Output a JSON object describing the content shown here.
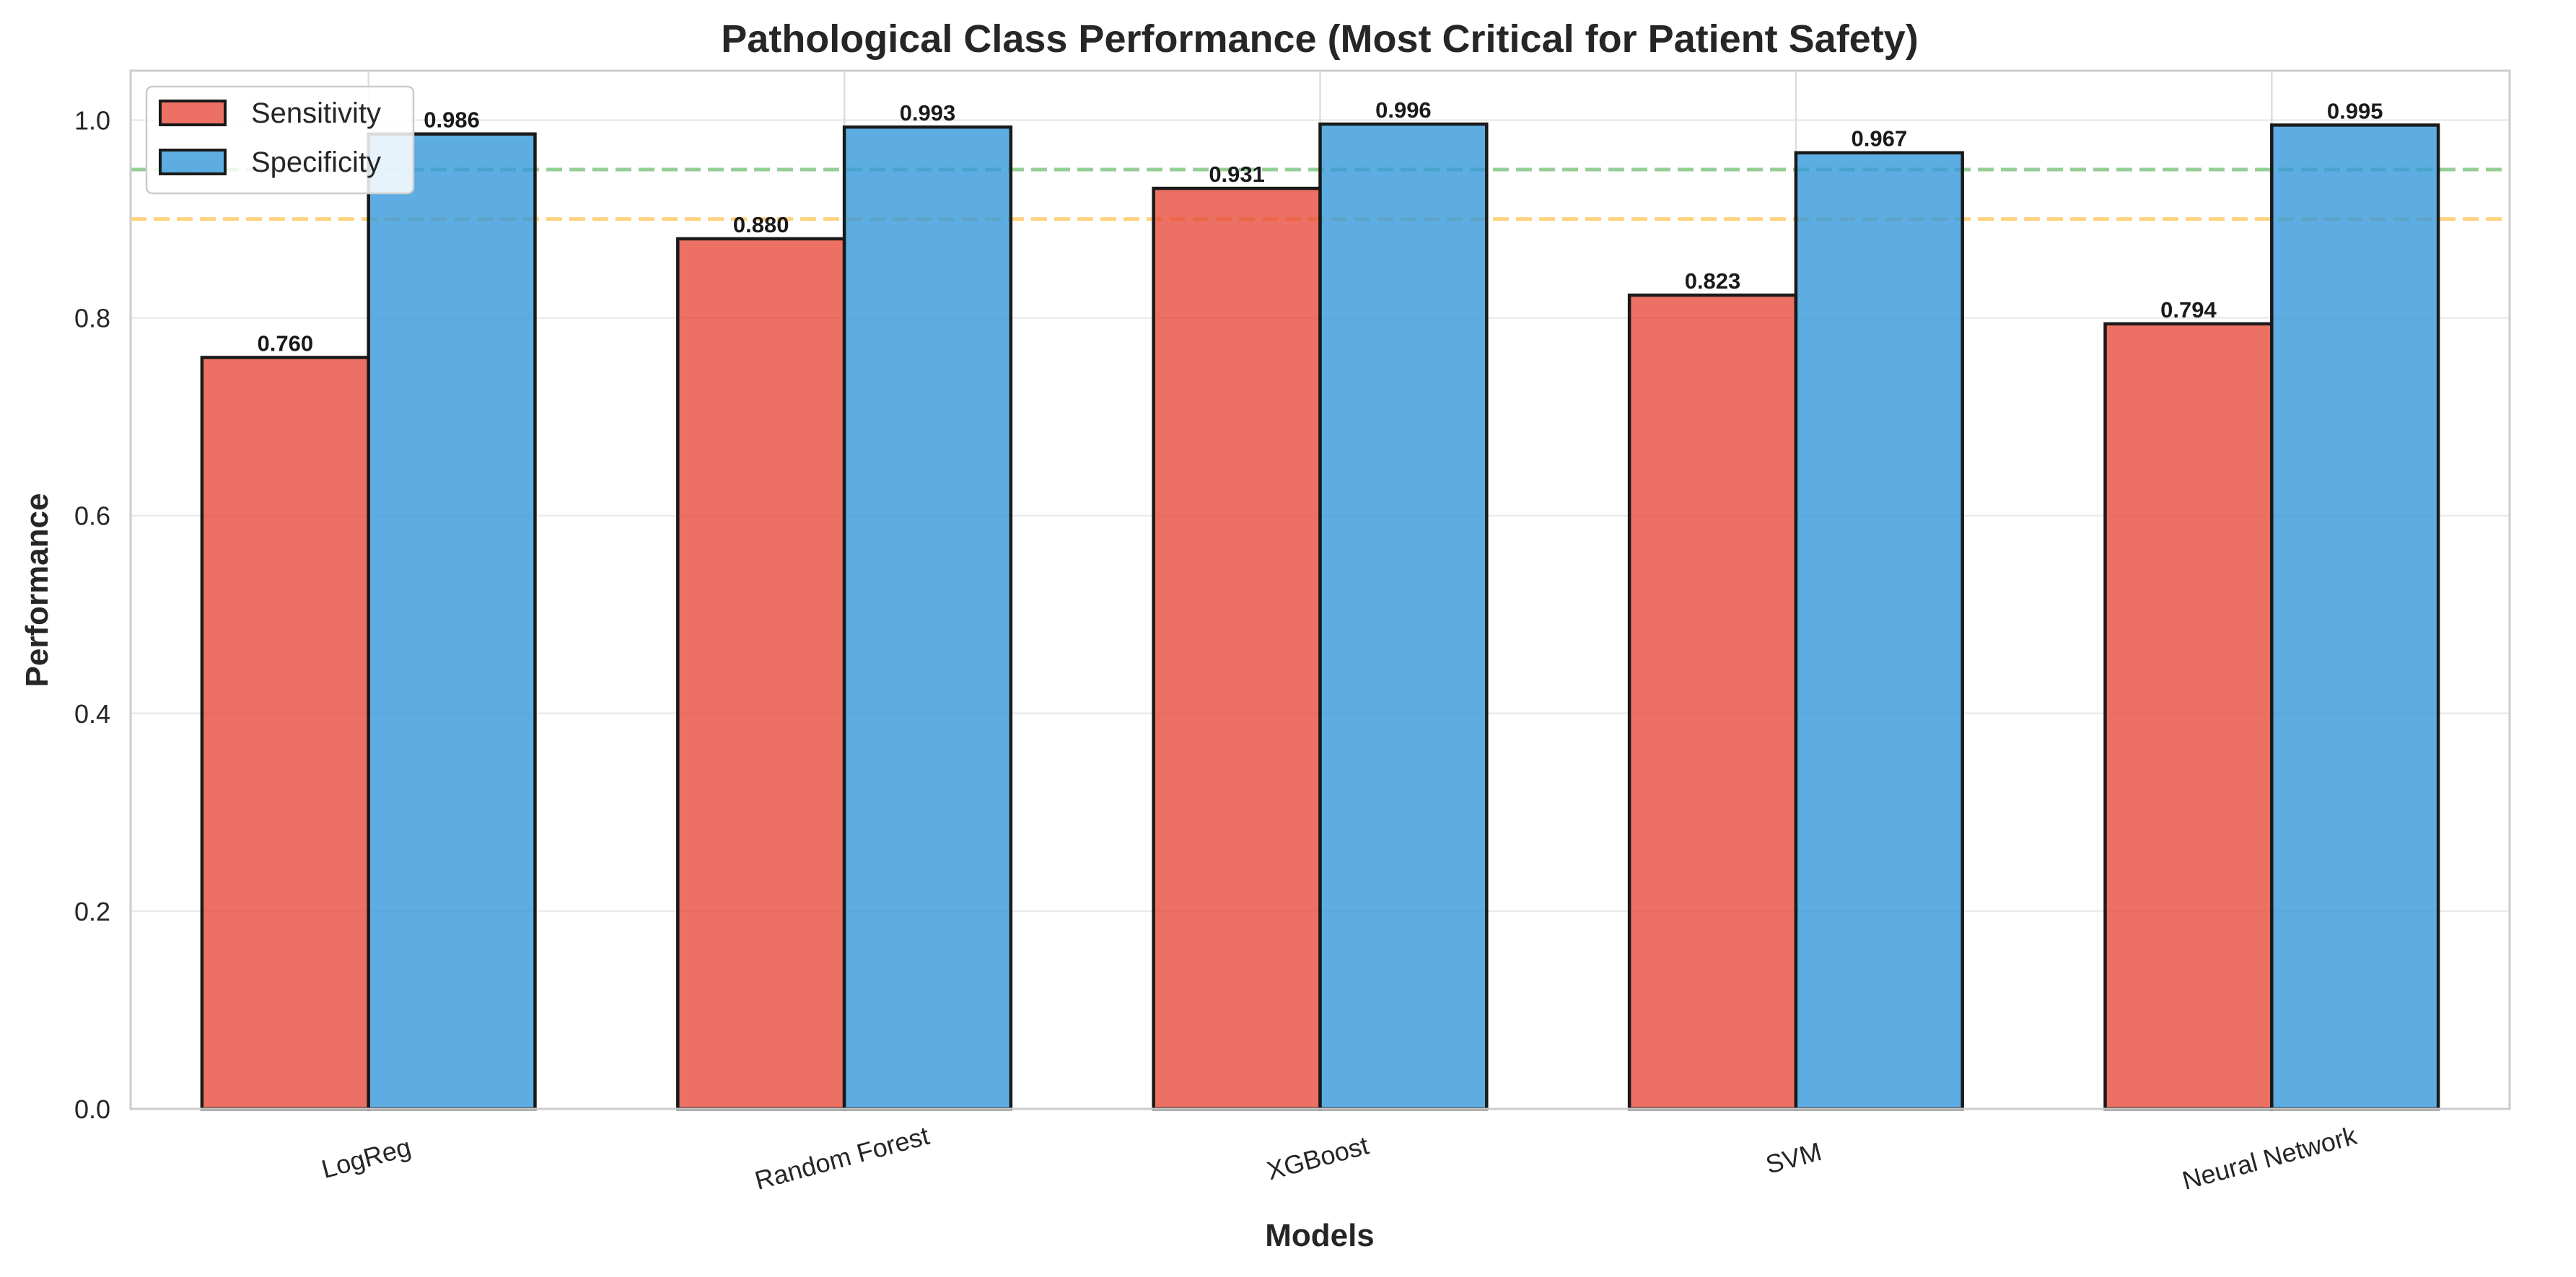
{
  "chart_data": {
    "type": "bar",
    "title": "Pathological Class Performance (Most Critical for Patient Safety)",
    "xlabel": "Models",
    "ylabel": "Performance",
    "categories": [
      "LogReg",
      "Random Forest",
      "XGBoost",
      "SVM",
      "Neural Network"
    ],
    "series": [
      {
        "name": "Sensitivity",
        "values": [
          0.76,
          0.88,
          0.931,
          0.823,
          0.794
        ],
        "labels": [
          "0.760",
          "0.880",
          "0.931",
          "0.823",
          "0.794"
        ],
        "color": "#e74c3c"
      },
      {
        "name": "Specificity",
        "values": [
          0.986,
          0.993,
          0.996,
          0.967,
          0.995
        ],
        "labels": [
          "0.986",
          "0.993",
          "0.996",
          "0.967",
          "0.995"
        ],
        "color": "#3498db"
      }
    ],
    "ylim": [
      0,
      1.05
    ],
    "yticks": [
      0.0,
      0.2,
      0.4,
      0.6,
      0.8,
      1.0
    ],
    "ytick_labels": [
      "0.0",
      "0.2",
      "0.4",
      "0.6",
      "0.8",
      "1.0"
    ],
    "reference_lines": [
      {
        "y": 0.95,
        "color": "#2ca02c",
        "style": "dashed"
      },
      {
        "y": 0.9,
        "color": "#ffa500",
        "style": "dashed"
      }
    ],
    "grid": true,
    "legend_position": "top-left"
  }
}
